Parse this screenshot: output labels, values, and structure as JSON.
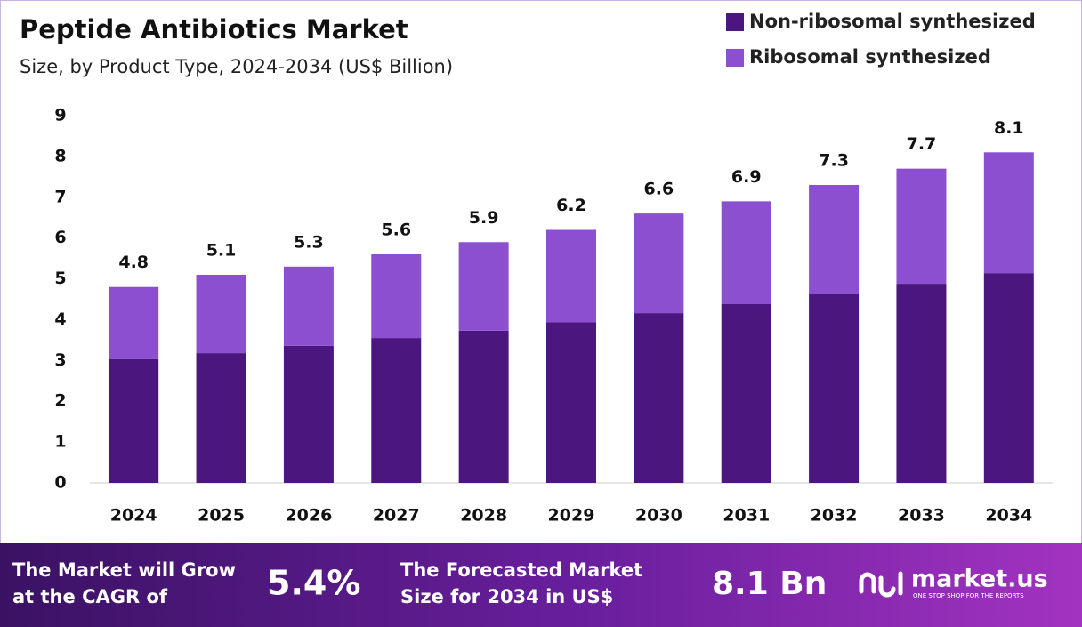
{
  "chart_data": {
    "type": "stacked-bar",
    "title": "Peptide Antibiotics Market",
    "subtitle": "Size, by Product Type, 2024-2034 (US$ Billion)",
    "categories": [
      "2024",
      "2025",
      "2026",
      "2027",
      "2028",
      "2029",
      "2030",
      "2031",
      "2032",
      "2033",
      "2034"
    ],
    "series": [
      {
        "name": "Non-ribosomal synthesized",
        "color": "#4c167f",
        "values": [
          3.03,
          3.18,
          3.36,
          3.55,
          3.73,
          3.94,
          4.16,
          4.38,
          4.62,
          4.88,
          5.14
        ]
      },
      {
        "name": "Ribosomal synthesized",
        "color": "#8c4fd0",
        "values": [
          1.77,
          1.92,
          1.94,
          2.05,
          2.17,
          2.26,
          2.44,
          2.52,
          2.68,
          2.82,
          2.96
        ]
      }
    ],
    "totals": [
      4.8,
      5.1,
      5.3,
      5.6,
      5.9,
      6.2,
      6.6,
      6.9,
      7.3,
      7.7,
      8.1
    ],
    "ylim": [
      0,
      9
    ],
    "yticks": [
      0,
      1,
      2,
      3,
      4,
      5,
      6,
      7,
      8,
      9
    ],
    "grid": false,
    "legend": "top-right"
  },
  "footer": {
    "cagr_label": [
      "The Market will Grow",
      "at the CAGR of"
    ],
    "cagr_value": "5.4%",
    "forecast_label": [
      "The Forecasted Market",
      "Size for 2034 in US$"
    ],
    "forecast_value": "8.1 Bn",
    "brand": "market.us",
    "tagline": "ONE STOP SHOP FOR THE REPORTS"
  }
}
